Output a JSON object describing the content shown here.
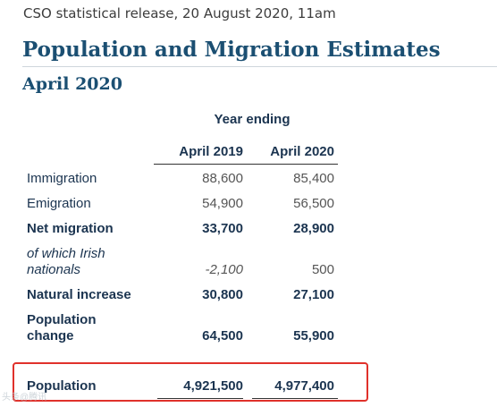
{
  "release_line": "CSO statistical release, 20 August 2020, 11am",
  "title": "Population and Migration Estimates",
  "subtitle": "April 2020",
  "table": {
    "group_header": "Year ending",
    "columns": [
      "April 2019",
      "April 2020"
    ],
    "rows": [
      {
        "label": "Immigration",
        "values": [
          "88,600",
          "85,400"
        ],
        "style": "normal"
      },
      {
        "label": "Emigration",
        "values": [
          "54,900",
          "56,500"
        ],
        "style": "normal"
      },
      {
        "label": "Net migration",
        "values": [
          "33,700",
          "28,900"
        ],
        "style": "bold"
      },
      {
        "label_lines": [
          "of which Irish",
          "nationals"
        ],
        "values": [
          "-2,100",
          "500"
        ],
        "style": "italic"
      },
      {
        "label": "Natural increase",
        "values": [
          "30,800",
          "27,100"
        ],
        "style": "bold"
      },
      {
        "label_lines": [
          "Population",
          "change"
        ],
        "values": [
          "64,500",
          "55,900"
        ],
        "style": "bold"
      },
      {
        "label": "Population",
        "values": [
          "4,921,500",
          "4,977,400"
        ],
        "style": "bold"
      }
    ]
  },
  "highlight_color": "#e0312b",
  "text_color": "#1b3450",
  "title_color": "#1b4f72",
  "watermark": "头条@腾讯"
}
